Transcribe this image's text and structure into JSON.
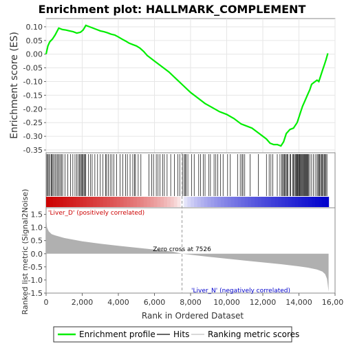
{
  "chart_data": {
    "type": "line",
    "title": "Enrichment plot: HALLMARK_COMPLEMENT",
    "top_panel": {
      "ylabel": "Enrichment score (ES)",
      "ylim": [
        -0.36,
        0.13
      ],
      "yticks": [
        0.1,
        0.05,
        0.0,
        -0.05,
        -0.1,
        -0.15,
        -0.2,
        -0.25,
        -0.3,
        -0.35
      ],
      "ytick_labels": [
        "0.10",
        "0.05",
        "0.00",
        "-0.05",
        "-0.10",
        "-0.15",
        "-0.20",
        "-0.25",
        "-0.30",
        "-0.35"
      ],
      "series": [
        {
          "name": "Enrichment profile",
          "color": "#00ee00",
          "x": [
            0,
            100,
            200,
            350,
            500,
            700,
            900,
            1100,
            1300,
            1500,
            1700,
            1900,
            2050,
            2200,
            2400,
            2600,
            2800,
            3000,
            3200,
            3400,
            3600,
            3800,
            4000,
            4200,
            4400,
            4600,
            4800,
            5000,
            5200,
            5400,
            5600,
            5800,
            6000,
            6400,
            6800,
            7200,
            7600,
            8000,
            8400,
            8800,
            9200,
            9600,
            10000,
            10400,
            10800,
            11000,
            11400,
            11800,
            12200,
            12400,
            12600,
            12800,
            13000,
            13150,
            13300,
            13500,
            13700,
            13900,
            14000,
            14100,
            14200,
            14300,
            14400,
            14500,
            14600,
            14700,
            14800,
            14900,
            15000,
            15100,
            15200,
            15300,
            15400,
            15500,
            15600
          ],
          "y": [
            0.0,
            0.03,
            0.045,
            0.055,
            0.07,
            0.095,
            0.09,
            0.088,
            0.085,
            0.082,
            0.077,
            0.08,
            0.088,
            0.105,
            0.1,
            0.095,
            0.09,
            0.085,
            0.082,
            0.078,
            0.073,
            0.07,
            0.063,
            0.055,
            0.048,
            0.04,
            0.035,
            0.03,
            0.022,
            0.01,
            -0.005,
            -0.015,
            -0.025,
            -0.045,
            -0.065,
            -0.09,
            -0.115,
            -0.14,
            -0.16,
            -0.18,
            -0.195,
            -0.21,
            -0.22,
            -0.235,
            -0.255,
            -0.26,
            -0.27,
            -0.29,
            -0.31,
            -0.325,
            -0.33,
            -0.33,
            -0.335,
            -0.32,
            -0.29,
            -0.275,
            -0.27,
            -0.25,
            -0.23,
            -0.21,
            -0.19,
            -0.175,
            -0.16,
            -0.145,
            -0.13,
            -0.11,
            -0.105,
            -0.1,
            -0.095,
            -0.1,
            -0.08,
            -0.06,
            -0.04,
            -0.02,
            0.003
          ]
        }
      ]
    },
    "middle_panel": {
      "legend_name": "Hits",
      "hit_positions": [
        40,
        90,
        150,
        210,
        280,
        330,
        380,
        450,
        520,
        600,
        650,
        720,
        790,
        850,
        920,
        1050,
        1200,
        1350,
        1480,
        1600,
        1700,
        1780,
        1850,
        1900,
        1950,
        2000,
        2050,
        2100,
        2150,
        2200,
        2350,
        2450,
        2550,
        2700,
        2850,
        3000,
        3150,
        3300,
        3350,
        3450,
        3550,
        3650,
        3750,
        3900,
        4100,
        4250,
        4400,
        4500,
        4650,
        4800,
        4900,
        4950,
        5100,
        5250,
        5700,
        5850,
        5950,
        6100,
        6200,
        6300,
        6450,
        6550,
        6700,
        6900,
        7100,
        7300,
        7400,
        7550,
        7650,
        7700,
        7750,
        7850,
        8050,
        8200,
        8450,
        8550,
        8700,
        8800,
        9000,
        9100,
        9300,
        9400,
        9500,
        9650,
        9800,
        10050,
        10200,
        10600,
        10750,
        10850,
        10900,
        11000,
        11300,
        11750,
        12200,
        12350,
        12450,
        12550,
        12800,
        12950,
        13050,
        13100,
        13150,
        13200,
        13250,
        13300,
        13350,
        13400,
        13500,
        13550,
        13650,
        13700,
        13750,
        13800,
        13850,
        13880,
        13920,
        13950,
        13990,
        14030,
        14060,
        14100,
        14140,
        14180,
        14220,
        14260,
        14300,
        14340,
        14380,
        14420,
        14460,
        14500,
        14540,
        14600,
        14700,
        14800,
        14900,
        15000,
        15050,
        15100,
        15150,
        15200,
        15250,
        15300,
        15350,
        15400,
        15450,
        15500,
        15550
      ]
    },
    "bottom_panel": {
      "ylabel": "Ranked list metric (Signal2Noise)",
      "ylim": [
        -1.5,
        1.75
      ],
      "yticks": [
        1.5,
        1.0,
        0.5,
        0.0,
        -0.5,
        -1.0,
        -1.5
      ],
      "ytick_labels": [
        "1.5",
        "1.0",
        "0.5",
        "0.0",
        "-0.5",
        "-1.0",
        "-1.5"
      ],
      "legend_name": "Ranking metric scores",
      "metric_x": [
        0,
        50,
        150,
        300,
        500,
        1000,
        2000,
        3000,
        4000,
        5000,
        6000,
        7000,
        7526,
        8000,
        9000,
        10000,
        11000,
        12000,
        13000,
        14000,
        14500,
        15000,
        15300,
        15450,
        15550,
        15600,
        15640
      ],
      "metric_y": [
        1.4,
        1.0,
        0.85,
        0.75,
        0.7,
        0.6,
        0.47,
        0.38,
        0.3,
        0.23,
        0.16,
        0.08,
        0.0,
        -0.04,
        -0.12,
        -0.19,
        -0.26,
        -0.33,
        -0.4,
        -0.48,
        -0.53,
        -0.6,
        -0.68,
        -0.78,
        -0.95,
        -1.2,
        -1.45
      ],
      "zero_cross_rank": 7526,
      "zero_cross_label": "Zero cross at 7526",
      "pos_label": "'Liver_D' (positively correlated)",
      "neg_label": "'Liver_N' (negatively correlated)",
      "pos_color": "#cc0000",
      "neg_color": "#0000cc"
    },
    "x_axis": {
      "label": "Rank in Ordered Dataset",
      "xlim": [
        0,
        16000
      ],
      "ticks": [
        0,
        2000,
        4000,
        6000,
        8000,
        10000,
        12000,
        14000,
        16000
      ],
      "tick_labels": [
        "0",
        "2,000",
        "4,000",
        "6,000",
        "8,000",
        "10,000",
        "12,000",
        "14,000",
        "16,000"
      ],
      "n_genes": 15640
    },
    "legend": {
      "entries": [
        {
          "name": "Enrichment profile",
          "color": "#00ee00"
        },
        {
          "name": "Hits",
          "color": "#000000"
        },
        {
          "name": "Ranking metric scores",
          "color": "#cccccc"
        }
      ]
    }
  }
}
